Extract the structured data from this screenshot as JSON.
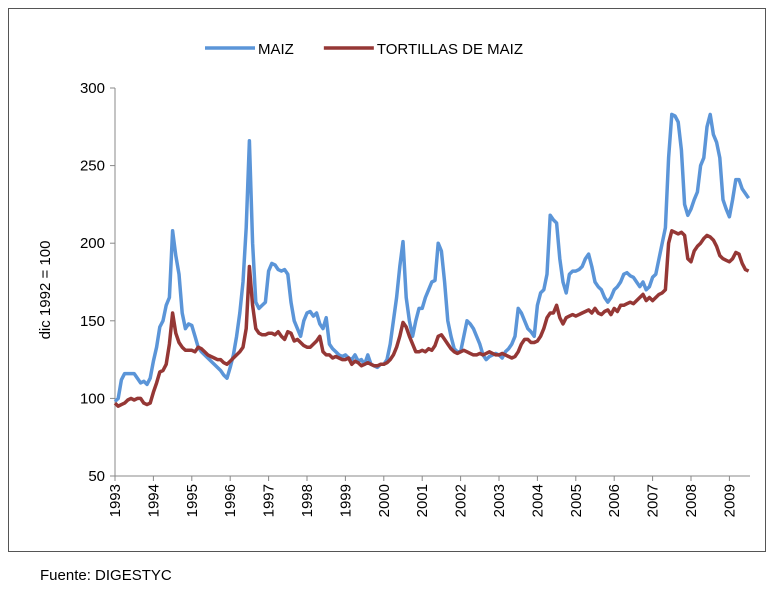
{
  "chart_data": {
    "type": "line",
    "y_label": "dic 1992 = 100",
    "source": "Fuente:  DIGESTYC",
    "legend": "top",
    "ylim": [
      50,
      300
    ],
    "yticks": [
      50,
      100,
      150,
      200,
      250,
      300
    ],
    "categories": [
      "1993",
      null,
      null,
      null,
      null,
      null,
      null,
      null,
      null,
      null,
      null,
      null,
      "1994",
      null,
      null,
      null,
      null,
      null,
      null,
      null,
      null,
      null,
      null,
      null,
      "1995",
      null,
      null,
      null,
      null,
      null,
      null,
      null,
      null,
      null,
      null,
      null,
      "1996",
      null,
      null,
      null,
      null,
      null,
      null,
      null,
      null,
      null,
      null,
      null,
      "1997",
      null,
      null,
      null,
      null,
      null,
      null,
      null,
      null,
      null,
      null,
      null,
      "1998",
      null,
      null,
      null,
      null,
      null,
      null,
      null,
      null,
      null,
      null,
      null,
      "1999",
      null,
      null,
      null,
      null,
      null,
      null,
      null,
      null,
      null,
      null,
      null,
      "2000",
      null,
      null,
      null,
      null,
      null,
      null,
      null,
      null,
      null,
      null,
      null,
      "2001",
      null,
      null,
      null,
      null,
      null,
      null,
      null,
      null,
      null,
      null,
      null,
      "2002",
      null,
      null,
      null,
      null,
      null,
      null,
      null,
      null,
      null,
      null,
      null,
      "2003",
      null,
      null,
      null,
      null,
      null,
      null,
      null,
      null,
      null,
      null,
      null,
      "2004",
      null,
      null,
      null,
      null,
      null,
      null,
      null,
      null,
      null,
      null,
      null,
      "2005",
      null,
      null,
      null,
      null,
      null,
      null,
      null,
      null,
      null,
      null,
      null,
      "2006",
      null,
      null,
      null,
      null,
      null,
      null,
      null,
      null,
      null,
      null,
      null,
      "2007",
      null,
      null,
      null,
      null,
      null,
      null,
      null,
      null,
      null,
      null,
      null,
      "2008",
      null,
      null,
      null,
      null,
      null,
      null,
      null,
      null,
      null,
      null,
      null,
      "2009",
      null,
      null,
      null,
      null,
      null,
      null
    ],
    "series": [
      {
        "name": "MAIZ",
        "color": "#5b95d8",
        "values": [
          98,
          100,
          112,
          116,
          116,
          116,
          116,
          113,
          110,
          111,
          109,
          113,
          124,
          133,
          146,
          150,
          160,
          165,
          208,
          192,
          180,
          155,
          145,
          148,
          147,
          140,
          133,
          130,
          128,
          126,
          124,
          122,
          120,
          118,
          115,
          113,
          120,
          128,
          140,
          155,
          175,
          210,
          266,
          200,
          162,
          158,
          160,
          162,
          182,
          187,
          186,
          183,
          182,
          183,
          180,
          162,
          150,
          145,
          140,
          150,
          155,
          156,
          153,
          155,
          148,
          145,
          152,
          135,
          132,
          130,
          128,
          127,
          128,
          126,
          125,
          128,
          124,
          125,
          122,
          128,
          122,
          121,
          120,
          122,
          122,
          125,
          135,
          150,
          165,
          185,
          201,
          165,
          150,
          140,
          150,
          158,
          158,
          165,
          170,
          175,
          176,
          200,
          195,
          175,
          150,
          140,
          132,
          130,
          130,
          140,
          150,
          148,
          145,
          140,
          135,
          128,
          125,
          127,
          128,
          129,
          128,
          126,
          130,
          132,
          135,
          140,
          158,
          155,
          150,
          145,
          143,
          140,
          160,
          168,
          170,
          180,
          218,
          215,
          213,
          190,
          175,
          168,
          180,
          182,
          182,
          183,
          185,
          190,
          193,
          185,
          175,
          172,
          170,
          165,
          162,
          165,
          170,
          172,
          175,
          180,
          181,
          179,
          178,
          175,
          172,
          175,
          170,
          172,
          178,
          180,
          190,
          200,
          210,
          255,
          283,
          282,
          278,
          260,
          225,
          218,
          222,
          228,
          233,
          250,
          255,
          275,
          283,
          270,
          265,
          255,
          228,
          222,
          217,
          228,
          241,
          241,
          235,
          232,
          229
        ]
      },
      {
        "name": "TORTILLAS DE MAIZ",
        "color": "#953735",
        "values": [
          97,
          95,
          96,
          97,
          99,
          100,
          99,
          100,
          100,
          97,
          96,
          97,
          104,
          110,
          117,
          118,
          122,
          135,
          155,
          142,
          136,
          133,
          131,
          131,
          131,
          130,
          133,
          132,
          130,
          128,
          127,
          126,
          125,
          125,
          123,
          122,
          124,
          126,
          128,
          130,
          133,
          145,
          185,
          160,
          145,
          142,
          141,
          141,
          142,
          142,
          141,
          143,
          140,
          138,
          143,
          142,
          137,
          138,
          136,
          134,
          133,
          133,
          135,
          137,
          140,
          130,
          128,
          128,
          126,
          127,
          126,
          125,
          125,
          126,
          122,
          124,
          123,
          121,
          122,
          123,
          122,
          121,
          121,
          122,
          122,
          123,
          125,
          128,
          133,
          140,
          149,
          146,
          140,
          135,
          130,
          130,
          131,
          130,
          132,
          131,
          134,
          140,
          141,
          138,
          135,
          132,
          130,
          129,
          130,
          131,
          130,
          129,
          128,
          128,
          129,
          128,
          129,
          130,
          129,
          128,
          128,
          129,
          128,
          127,
          126,
          127,
          130,
          135,
          138,
          138,
          136,
          136,
          137,
          140,
          145,
          152,
          155,
          155,
          160,
          152,
          148,
          152,
          153,
          154,
          153,
          154,
          155,
          156,
          157,
          155,
          158,
          155,
          154,
          156,
          157,
          154,
          158,
          156,
          160,
          160,
          161,
          162,
          161,
          163,
          165,
          167,
          163,
          165,
          163,
          165,
          167,
          168,
          170,
          200,
          208,
          207,
          206,
          207,
          205,
          190,
          188,
          195,
          198,
          200,
          203,
          205,
          204,
          202,
          198,
          192,
          190,
          189,
          188,
          190,
          194,
          193,
          187,
          183,
          182
        ]
      }
    ]
  }
}
